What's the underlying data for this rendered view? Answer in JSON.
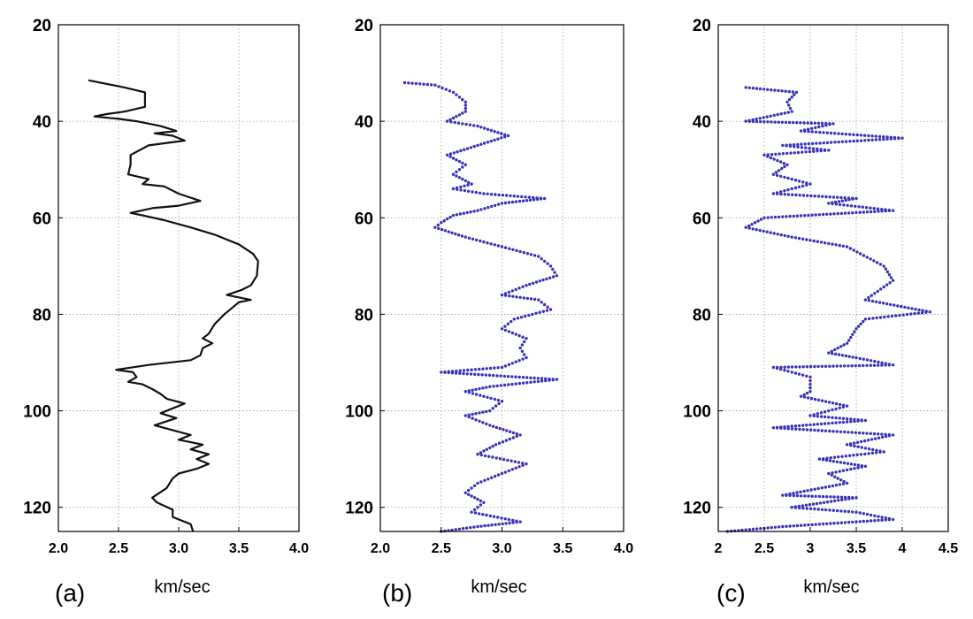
{
  "chart_data": [
    {
      "type": "line",
      "panel_label": "(a)",
      "xlabel": "km/sec",
      "xlim": [
        2.0,
        4.0
      ],
      "xticks": [
        "2.0",
        "2.5",
        "3.0",
        "3.5",
        "4.0"
      ],
      "xtick_values": [
        2.0,
        2.5,
        3.0,
        3.5,
        4.0
      ],
      "ylim": [
        20,
        125
      ],
      "yticks": [
        "20",
        "40",
        "60",
        "80",
        "100",
        "120"
      ],
      "ytick_values": [
        20,
        40,
        60,
        80,
        100,
        120
      ],
      "y_inverted": true,
      "grid": true,
      "series": [
        {
          "color": "#111111",
          "style": "solid",
          "points": [
            [
              2.25,
              31.5
            ],
            [
              2.55,
              33
            ],
            [
              2.72,
              34
            ],
            [
              2.72,
              37
            ],
            [
              2.55,
              38
            ],
            [
              2.4,
              38.5
            ],
            [
              2.3,
              39
            ],
            [
              2.5,
              39.5
            ],
            [
              2.65,
              40
            ],
            [
              2.85,
              41
            ],
            [
              2.98,
              42
            ],
            [
              2.8,
              42.5
            ],
            [
              2.95,
              43
            ],
            [
              3.05,
              44
            ],
            [
              2.75,
              45
            ],
            [
              2.6,
              47
            ],
            [
              2.6,
              49
            ],
            [
              2.58,
              51
            ],
            [
              2.75,
              52
            ],
            [
              2.7,
              53
            ],
            [
              2.88,
              53.5
            ],
            [
              3.0,
              55
            ],
            [
              3.18,
              56.5
            ],
            [
              3.0,
              57.5
            ],
            [
              2.78,
              58
            ],
            [
              2.6,
              59
            ],
            [
              2.7,
              59.5
            ],
            [
              2.88,
              60.5
            ],
            [
              3.1,
              62
            ],
            [
              3.3,
              63.5
            ],
            [
              3.5,
              65.5
            ],
            [
              3.62,
              67.5
            ],
            [
              3.66,
              69
            ],
            [
              3.65,
              72
            ],
            [
              3.6,
              74
            ],
            [
              3.52,
              75
            ],
            [
              3.4,
              76
            ],
            [
              3.5,
              76.5
            ],
            [
              3.6,
              77
            ],
            [
              3.5,
              77.5
            ],
            [
              3.38,
              80
            ],
            [
              3.3,
              82
            ],
            [
              3.25,
              84
            ],
            [
              3.2,
              85
            ],
            [
              3.28,
              86
            ],
            [
              3.2,
              87
            ],
            [
              3.18,
              88.5
            ],
            [
              3.1,
              89.5
            ],
            [
              2.75,
              90.5
            ],
            [
              2.48,
              91.5
            ],
            [
              2.62,
              92
            ],
            [
              2.65,
              93
            ],
            [
              2.58,
              94
            ],
            [
              2.7,
              94.5
            ],
            [
              2.78,
              95.5
            ],
            [
              2.85,
              96.5
            ],
            [
              2.9,
              97.5
            ],
            [
              3.05,
              98.5
            ],
            [
              2.95,
              99.5
            ],
            [
              2.85,
              100.5
            ],
            [
              2.98,
              101.5
            ],
            [
              2.8,
              103
            ],
            [
              2.95,
              104
            ],
            [
              3.1,
              105
            ],
            [
              3.0,
              106
            ],
            [
              3.2,
              107
            ],
            [
              3.1,
              108
            ],
            [
              3.25,
              109
            ],
            [
              3.15,
              110
            ],
            [
              3.25,
              111
            ],
            [
              3.15,
              112
            ],
            [
              3.0,
              113
            ],
            [
              2.95,
              114
            ],
            [
              2.9,
              116
            ],
            [
              2.78,
              118
            ],
            [
              2.82,
              119
            ],
            [
              2.95,
              120.5
            ],
            [
              2.95,
              122
            ],
            [
              3.1,
              123.5
            ],
            [
              3.12,
              125
            ]
          ]
        }
      ]
    },
    {
      "type": "scatter",
      "panel_label": "(b)",
      "xlabel": "km/sec",
      "xlim": [
        2.0,
        4.0
      ],
      "xticks": [
        "2.0",
        "2.5",
        "3.0",
        "3.5",
        "4.0"
      ],
      "xtick_values": [
        2.0,
        2.5,
        3.0,
        3.5,
        4.0
      ],
      "ylim": [
        20,
        125
      ],
      "yticks": [
        "20",
        "40",
        "60",
        "80",
        "100",
        "120"
      ],
      "ytick_values": [
        20,
        40,
        60,
        80,
        100,
        120
      ],
      "y_inverted": true,
      "grid": true,
      "series": [
        {
          "color": "#3a33b8",
          "style": "dots",
          "points": [
            [
              2.2,
              32
            ],
            [
              2.45,
              32.5
            ],
            [
              2.6,
              34
            ],
            [
              2.7,
              36
            ],
            [
              2.7,
              38
            ],
            [
              2.55,
              40
            ],
            [
              2.8,
              41
            ],
            [
              3.05,
              43
            ],
            [
              2.8,
              45
            ],
            [
              2.55,
              47
            ],
            [
              2.7,
              49
            ],
            [
              2.6,
              51
            ],
            [
              2.75,
              53
            ],
            [
              2.6,
              54
            ],
            [
              2.85,
              55
            ],
            [
              3.35,
              56
            ],
            [
              3.0,
              57
            ],
            [
              2.8,
              58.5
            ],
            [
              2.6,
              59.5
            ],
            [
              2.5,
              61
            ],
            [
              2.45,
              62
            ],
            [
              2.7,
              64
            ],
            [
              3.0,
              66
            ],
            [
              3.3,
              68
            ],
            [
              3.4,
              70
            ],
            [
              3.45,
              72
            ],
            [
              3.2,
              74
            ],
            [
              3.0,
              76
            ],
            [
              3.3,
              77
            ],
            [
              3.4,
              79
            ],
            [
              3.1,
              81
            ],
            [
              3.0,
              83
            ],
            [
              3.2,
              85
            ],
            [
              3.15,
              87
            ],
            [
              3.2,
              89
            ],
            [
              3.0,
              91
            ],
            [
              2.5,
              92
            ],
            [
              3.45,
              93.5
            ],
            [
              2.9,
              95
            ],
            [
              2.7,
              96
            ],
            [
              3.0,
              98
            ],
            [
              2.9,
              100
            ],
            [
              2.7,
              101
            ],
            [
              2.9,
              103
            ],
            [
              3.15,
              105
            ],
            [
              2.95,
              107
            ],
            [
              2.8,
              109
            ],
            [
              3.2,
              111
            ],
            [
              3.0,
              113
            ],
            [
              2.8,
              115
            ],
            [
              2.7,
              117
            ],
            [
              2.85,
              119
            ],
            [
              2.75,
              121
            ],
            [
              3.15,
              123
            ],
            [
              2.8,
              124
            ],
            [
              2.5,
              125
            ]
          ]
        }
      ]
    },
    {
      "type": "scatter",
      "panel_label": "(c)",
      "xlabel": "km/sec",
      "xlim": [
        2,
        4.5
      ],
      "xticks": [
        "2",
        "2.5",
        "3",
        "3.5",
        "4",
        "4.5"
      ],
      "xtick_values": [
        2,
        2.5,
        3,
        3.5,
        4,
        4.5
      ],
      "ylim": [
        20,
        125
      ],
      "yticks": [
        "20",
        "40",
        "60",
        "80",
        "100",
        "120"
      ],
      "ytick_values": [
        20,
        40,
        60,
        80,
        100,
        120
      ],
      "y_inverted": true,
      "grid": true,
      "series": [
        {
          "color": "#3a33b8",
          "style": "dots",
          "points": [
            [
              2.3,
              33
            ],
            [
              2.85,
              34
            ],
            [
              2.75,
              36
            ],
            [
              2.8,
              38
            ],
            [
              2.3,
              40
            ],
            [
              3.25,
              40.5
            ],
            [
              2.9,
              42
            ],
            [
              4.0,
              43.5
            ],
            [
              2.7,
              45
            ],
            [
              3.2,
              46
            ],
            [
              2.5,
              47
            ],
            [
              2.75,
              49
            ],
            [
              2.6,
              51
            ],
            [
              3.0,
              53
            ],
            [
              2.6,
              55
            ],
            [
              3.5,
              56
            ],
            [
              3.2,
              57
            ],
            [
              3.9,
              58.5
            ],
            [
              2.5,
              60
            ],
            [
              2.3,
              62
            ],
            [
              2.8,
              64
            ],
            [
              3.4,
              66
            ],
            [
              3.8,
              70
            ],
            [
              3.9,
              73
            ],
            [
              3.6,
              77
            ],
            [
              4.3,
              79.5
            ],
            [
              3.6,
              81
            ],
            [
              3.5,
              83
            ],
            [
              3.4,
              86
            ],
            [
              3.2,
              88
            ],
            [
              3.5,
              89
            ],
            [
              3.9,
              90.5
            ],
            [
              2.6,
              91
            ],
            [
              3.0,
              93
            ],
            [
              3.0,
              96
            ],
            [
              2.9,
              97
            ],
            [
              3.4,
              99
            ],
            [
              3.0,
              101
            ],
            [
              3.6,
              102
            ],
            [
              2.6,
              103.5
            ],
            [
              3.9,
              105
            ],
            [
              3.4,
              107
            ],
            [
              3.8,
              108.5
            ],
            [
              3.1,
              110
            ],
            [
              3.6,
              111.5
            ],
            [
              3.2,
              113
            ],
            [
              3.4,
              115
            ],
            [
              2.7,
              117.5
            ],
            [
              3.5,
              118
            ],
            [
              2.8,
              120
            ],
            [
              3.5,
              121
            ],
            [
              3.9,
              122.5
            ],
            [
              2.7,
              124
            ],
            [
              2.1,
              125
            ]
          ]
        }
      ]
    }
  ]
}
